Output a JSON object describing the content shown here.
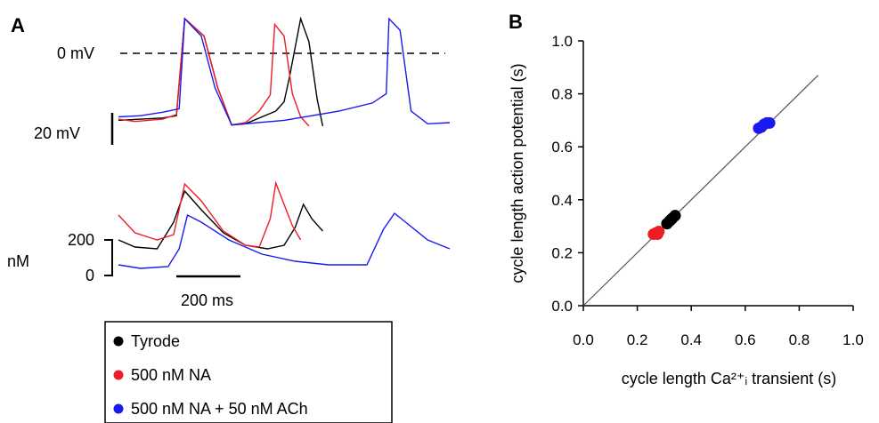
{
  "panel_a": {
    "letter": "A",
    "zero_mv_label": "0 mV",
    "mv_scale_label": "20 mV",
    "nm_unit_label": "nM",
    "nm_tick_200": "200",
    "nm_tick_0": "0",
    "time_scale_label": "200 ms",
    "legend": [
      {
        "label": "Tyrode",
        "color": "#000000"
      },
      {
        "label": "500 nM NA",
        "color": "#ee1c25"
      },
      {
        "label": "500 nM NA + 50 nM ACh",
        "color": "#1a1aee"
      }
    ]
  },
  "panel_b": {
    "letter": "B"
  },
  "chart_data": [
    {
      "type": "line",
      "panel": "A (top)",
      "title": "",
      "xlabel": "",
      "ylabel": "",
      "units": {
        "x": "ms",
        "y": "mV"
      },
      "reference_line": {
        "y": 0,
        "label": "0 mV",
        "style": "dashed"
      },
      "series": [
        {
          "color": "#000000",
          "x": [
            0,
            40,
            80,
            105,
            120,
            155,
            180,
            205,
            230,
            285,
            300,
            310,
            330,
            345,
            360,
            370
          ],
          "y": [
            -58,
            -57,
            -56,
            -54,
            30,
            15,
            -30,
            -62,
            -61,
            -50,
            -42,
            -20,
            30,
            10,
            -40,
            -63
          ]
        },
        {
          "color": "#ee1c25",
          "x": [
            0,
            30,
            80,
            105,
            120,
            155,
            180,
            205,
            230,
            255,
            275,
            283,
            300,
            315,
            330,
            345
          ],
          "y": [
            -57,
            -59,
            -57,
            -53,
            30,
            15,
            -30,
            -62,
            -60,
            -50,
            -36,
            25,
            15,
            -35,
            -55,
            -63
          ]
        },
        {
          "color": "#1a1aee",
          "x": [
            0,
            40,
            80,
            110,
            120,
            150,
            175,
            205,
            300,
            400,
            460,
            485,
            490,
            510,
            530,
            560,
            600
          ],
          "y": [
            -55,
            -54,
            -51,
            -48,
            30,
            15,
            -30,
            -62,
            -58,
            -50,
            -43,
            -35,
            30,
            20,
            -50,
            -61,
            -60
          ]
        }
      ]
    },
    {
      "type": "line",
      "panel": "A (bottom)",
      "title": "",
      "xlabel": "",
      "ylabel": "nM",
      "yticks": [
        0,
        200
      ],
      "x_scale_bar": "200 ms",
      "series": [
        {
          "color": "#000000",
          "x": [
            0,
            30,
            70,
            100,
            120,
            150,
            190,
            230,
            270,
            300,
            320,
            335,
            350,
            370
          ],
          "y": [
            200,
            160,
            150,
            300,
            475,
            370,
            240,
            170,
            150,
            170,
            270,
            400,
            320,
            250
          ]
        },
        {
          "color": "#ee1c25",
          "x": [
            0,
            30,
            70,
            100,
            120,
            150,
            190,
            230,
            255,
            275,
            285,
            300,
            315,
            330
          ],
          "y": [
            340,
            240,
            200,
            230,
            515,
            420,
            250,
            170,
            160,
            320,
            520,
            400,
            280,
            200
          ]
        },
        {
          "color": "#1a1aee",
          "x": [
            0,
            40,
            90,
            110,
            125,
            150,
            200,
            260,
            320,
            380,
            450,
            480,
            500,
            520,
            560,
            600
          ],
          "y": [
            60,
            40,
            50,
            150,
            340,
            300,
            200,
            120,
            80,
            60,
            60,
            260,
            350,
            300,
            200,
            150
          ]
        }
      ]
    },
    {
      "type": "scatter",
      "panel": "B",
      "title": "",
      "xlabel": "cycle length Ca²⁺ᵢ transient (s)",
      "ylabel": "cycle length action potential (s)",
      "xlim": [
        0.0,
        1.0
      ],
      "ylim": [
        0.0,
        1.0
      ],
      "xticks": [
        "0.0",
        "0.2",
        "0.4",
        "0.6",
        "0.8",
        "1.0"
      ],
      "yticks": [
        "0.0",
        "0.2",
        "0.4",
        "0.6",
        "0.8",
        "1.0"
      ],
      "identity_line": {
        "x": [
          0,
          1
        ],
        "y": [
          0,
          1
        ]
      },
      "series": [
        {
          "color": "#000000",
          "points": [
            [
              0.31,
              0.31
            ],
            [
              0.32,
              0.32
            ],
            [
              0.33,
              0.33
            ],
            [
              0.34,
              0.34
            ],
            [
              0.325,
              0.325
            ]
          ]
        },
        {
          "color": "#ee1c25",
          "points": [
            [
              0.26,
              0.27
            ],
            [
              0.27,
              0.275
            ],
            [
              0.28,
              0.28
            ],
            [
              0.275,
              0.27
            ]
          ]
        },
        {
          "color": "#1a1aee",
          "points": [
            [
              0.65,
              0.67
            ],
            [
              0.66,
              0.675
            ],
            [
              0.67,
              0.685
            ],
            [
              0.68,
              0.69
            ],
            [
              0.69,
              0.69
            ]
          ]
        }
      ]
    }
  ]
}
